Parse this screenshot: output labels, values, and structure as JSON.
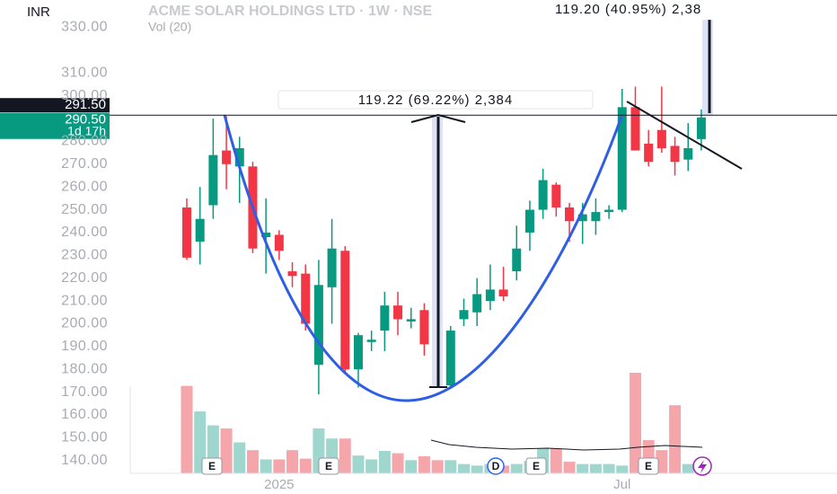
{
  "chart_data": {
    "type": "candlestick",
    "title": "ACME SOLAR HOLDINGS LTD · 1W · NSE",
    "subtitle": "Vol (20)",
    "currency": "INR",
    "up_color": "#089981",
    "down_color": "#f23645",
    "volume_up_color": "#9fd6cd",
    "volume_down_color": "#f5a6ab",
    "categories": [
      null,
      null,
      null,
      null,
      null,
      null,
      null,
      "2025",
      null,
      null,
      null,
      null,
      null,
      null,
      null,
      null,
      null,
      null,
      null,
      null,
      null,
      null,
      null,
      null,
      null,
      null,
      null,
      null,
      null,
      null,
      null,
      null,
      null,
      "Jul",
      null,
      null,
      null,
      null,
      null,
      null
    ],
    "series": [
      {
        "name": "open",
        "values": [
          251,
          236,
          252,
          276,
          269,
          269,
          238,
          239,
          223,
          222,
          182,
          216,
          232,
          180,
          192,
          197,
          208,
          201,
          206,
          194,
          173,
          202,
          205,
          210,
          215,
          223,
          240,
          250,
          261,
          251,
          245,
          245,
          249,
          250,
          295,
          279,
          285,
          278,
          272,
          281
        ]
      },
      {
        "name": "high",
        "values": [
          255,
          260,
          290,
          291,
          282,
          271,
          255,
          241,
          227,
          226,
          228,
          246,
          234,
          196,
          197,
          214,
          214,
          207,
          209,
          198,
          199,
          211,
          220,
          226,
          225,
          243,
          254,
          268,
          262,
          253,
          253,
          255,
          252,
          303,
          304,
          285,
          304,
          282,
          288,
          294
        ]
      },
      {
        "name": "low",
        "values": [
          228,
          226,
          246,
          259,
          253,
          231,
          222,
          228,
          216,
          197,
          169,
          200,
          179,
          172,
          188,
          188,
          195,
          198,
          186,
          188,
          172,
          199,
          199,
          206,
          210,
          219,
          232,
          246,
          247,
          236,
          235,
          239,
          246,
          249,
          276,
          269,
          275,
          265,
          267,
          276
        ]
      },
      {
        "name": "close",
        "values": [
          229,
          246,
          274,
          270,
          277,
          233,
          240,
          232,
          221,
          200,
          217,
          233,
          180,
          195,
          193,
          208,
          202,
          202,
          191,
          191,
          197,
          206,
          213,
          215,
          212,
          233,
          250,
          263,
          251,
          245,
          248,
          249,
          250,
          295,
          276,
          271,
          277,
          271,
          277,
          290.5
        ]
      },
      {
        "name": "volume",
        "values": [
          113,
          80,
          62,
          58,
          40,
          30,
          18,
          18,
          30,
          19,
          58,
          45,
          45,
          23,
          18,
          29,
          26,
          17,
          22,
          17,
          17,
          12,
          10,
          12,
          10,
          12,
          16,
          32,
          32,
          15,
          12,
          12,
          12,
          10,
          130,
          43,
          30,
          88,
          12,
          12
        ]
      }
    ],
    "ylim": [
      134,
      342
    ],
    "yticks": [
      {
        "value": 140,
        "label": "140.00"
      },
      {
        "value": 150,
        "label": "150.00"
      },
      {
        "value": 160,
        "label": "160.00"
      },
      {
        "value": 170,
        "label": "170.00"
      },
      {
        "value": 180,
        "label": "180.00"
      },
      {
        "value": 190,
        "label": "190.00"
      },
      {
        "value": 200,
        "label": "200.00"
      },
      {
        "value": 210,
        "label": "210.00"
      },
      {
        "value": 220,
        "label": "220.00"
      },
      {
        "value": 230,
        "label": "230.00"
      },
      {
        "value": 240,
        "label": "240.00"
      },
      {
        "value": 250,
        "label": "250.00"
      },
      {
        "value": 260,
        "label": "260.00"
      },
      {
        "value": 270,
        "label": "270.00"
      },
      {
        "value": 280,
        "label": "280.00"
      },
      {
        "value": 300,
        "label": "300.00"
      },
      {
        "value": 310,
        "label": "310.00"
      },
      {
        "value": 330,
        "label": "330.00"
      }
    ],
    "price_line": {
      "value": 291.5,
      "label": "291.50"
    },
    "close_tag": {
      "value": 290.5,
      "label": "290.50"
    },
    "countdown": "1d 17h",
    "annotations": [
      "119.22 (69.22%) 2,384",
      "119.20 (40.95%) 2,38"
    ],
    "events": [
      "E",
      "E",
      "D",
      "E",
      "E"
    ]
  }
}
